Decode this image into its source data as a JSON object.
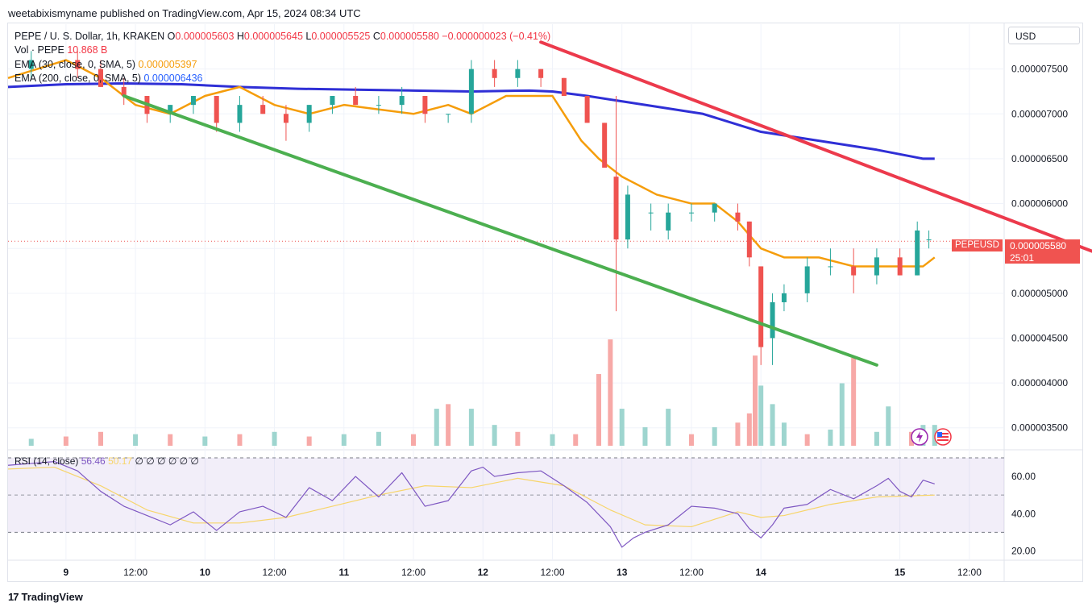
{
  "publisher_line": "weetabixismyname published on TradingView.com, Apr 15, 2024 08:34 UTC",
  "legend": {
    "symbol": "PEPE / U. S. Dollar, 1h, KRAKEN",
    "ohlc": {
      "o_label": "O",
      "o": "0.000005603",
      "h_label": "H",
      "h": "0.000005645",
      "l_label": "L",
      "l": "0.000005525",
      "c_label": "C",
      "c": "0.000005580",
      "change": "−0.000000023 (−0.41%)"
    },
    "vol_label": "Vol · PEPE",
    "vol_value": "10.868 B",
    "ema30_label": "EMA (30, close, 0, SMA, 5)",
    "ema30_value": "0.000005397",
    "ema200_label": "EMA (200, close, 0, SMA, 5)",
    "ema200_value": "0.000006436"
  },
  "currency": "USD",
  "price_tag": {
    "symbol": "PEPEUSD",
    "price": "0.000005580",
    "countdown": "25:01"
  },
  "rsi_legend": {
    "label": "RSI (14, close)",
    "rsi": "56.46",
    "ma": "50.17",
    "extras": "∅ ∅ ∅ ∅ ∅ ∅"
  },
  "footer": {
    "brand": "TradingView",
    "logo": "17"
  },
  "colors": {
    "up": "#26a69a",
    "down": "#ef5350",
    "ema30": "#f59d0b",
    "ema200": "#2f2fd6",
    "trend_red": "#ec3a4c",
    "trend_green": "#4caf50",
    "rsi": "#7e57c2",
    "rsi_ma": "#f7d56a"
  },
  "chart_data": [
    {
      "type": "line",
      "title": "PEPE / U. S. Dollar, 1h, KRAKEN",
      "ylim": [
        3.3e-06,
        8e-06
      ],
      "y_ticks": [
        "0.000007500",
        "0.000007000",
        "0.000006500",
        "0.000006000",
        "0.000005500",
        "0.000005000",
        "0.000004500",
        "0.000004000",
        "0.000003500"
      ],
      "y_tick_values": [
        7.5e-06,
        7e-06,
        6.5e-06,
        6e-06,
        5.5e-06,
        5e-06,
        4.5e-06,
        4e-06,
        3.5e-06
      ],
      "x_ticks": [
        "9",
        "12:00",
        "10",
        "12:00",
        "11",
        "12:00",
        "12",
        "12:00",
        "13",
        "12:00",
        "14",
        "15",
        "12:00"
      ],
      "x_tick_hours": [
        0,
        12,
        24,
        36,
        48,
        60,
        72,
        84,
        96,
        108,
        120,
        144,
        156
      ],
      "x_hour_range": [
        -10,
        162
      ],
      "series": [
        {
          "name": "EMA (30, close, 0, SMA, 5)",
          "x": [
            -10,
            0,
            6,
            12,
            18,
            24,
            30,
            36,
            42,
            48,
            54,
            60,
            66,
            70,
            76,
            82,
            84,
            86,
            89,
            92,
            96,
            102,
            108,
            112,
            116,
            120,
            124,
            130,
            136,
            142,
            148,
            150
          ],
          "values": [
            7.4e-06,
            7.6e-06,
            7.4e-06,
            7.1e-06,
            7e-06,
            7.2e-06,
            7.3e-06,
            7.1e-06,
            7e-06,
            7.1e-06,
            7.05e-06,
            7e-06,
            7.1e-06,
            7e-06,
            7.2e-06,
            7.2e-06,
            7.2e-06,
            7e-06,
            6.7e-06,
            6.5e-06,
            6.3e-06,
            6.1e-06,
            6e-06,
            6e-06,
            5.8e-06,
            5.5e-06,
            5.4e-06,
            5.4e-06,
            5.3e-06,
            5.3e-06,
            5.3e-06,
            5.4e-06
          ]
        },
        {
          "name": "EMA (200, close, 0, SMA, 5)",
          "x": [
            -10,
            0,
            10,
            20,
            30,
            40,
            50,
            60,
            70,
            80,
            84,
            90,
            100,
            110,
            120,
            130,
            140,
            148,
            150
          ],
          "values": [
            7.3e-06,
            7.33e-06,
            7.34e-06,
            7.33e-06,
            7.3e-06,
            7.28e-06,
            7.27e-06,
            7.26e-06,
            7.25e-06,
            7.26e-06,
            7.25e-06,
            7.2e-06,
            7.1e-06,
            7e-06,
            6.8e-06,
            6.7e-06,
            6.6e-06,
            6.5e-06,
            6.5e-06
          ]
        }
      ],
      "candles": [
        {
          "x": -6,
          "o": 7.5e-06,
          "h": 7.7e-06,
          "l": 7.4e-06,
          "c": 7.6e-06
        },
        {
          "x": 2,
          "o": 7.6e-06,
          "h": 7.7e-06,
          "l": 7.4e-06,
          "c": 7.5e-06
        },
        {
          "x": 6,
          "o": 7.5e-06,
          "h": 7.6e-06,
          "l": 7.3e-06,
          "c": 7.3e-06
        },
        {
          "x": 10,
          "o": 7.3e-06,
          "h": 7.4e-06,
          "l": 7.1e-06,
          "c": 7.2e-06
        },
        {
          "x": 14,
          "o": 7.2e-06,
          "h": 7.2e-06,
          "l": 6.9e-06,
          "c": 7e-06
        },
        {
          "x": 18,
          "o": 7e-06,
          "h": 7.1e-06,
          "l": 6.9e-06,
          "c": 7.1e-06
        },
        {
          "x": 22,
          "o": 7.1e-06,
          "h": 7.2e-06,
          "l": 7e-06,
          "c": 7.2e-06
        },
        {
          "x": 26,
          "o": 7.2e-06,
          "h": 7.2e-06,
          "l": 6.8e-06,
          "c": 6.9e-06
        },
        {
          "x": 30,
          "o": 6.9e-06,
          "h": 7.2e-06,
          "l": 6.8e-06,
          "c": 7.1e-06
        },
        {
          "x": 34,
          "o": 7.1e-06,
          "h": 7.2e-06,
          "l": 7e-06,
          "c": 7e-06
        },
        {
          "x": 38,
          "o": 7e-06,
          "h": 7.1e-06,
          "l": 6.7e-06,
          "c": 6.9e-06
        },
        {
          "x": 42,
          "o": 6.9e-06,
          "h": 7.1e-06,
          "l": 6.8e-06,
          "c": 7.1e-06
        },
        {
          "x": 46,
          "o": 7.1e-06,
          "h": 7.2e-06,
          "l": 7e-06,
          "c": 7.2e-06
        },
        {
          "x": 50,
          "o": 7.2e-06,
          "h": 7.3e-06,
          "l": 7.1e-06,
          "c": 7.1e-06
        },
        {
          "x": 54,
          "o": 7.1e-06,
          "h": 7.2e-06,
          "l": 7e-06,
          "c": 7.1e-06
        },
        {
          "x": 58,
          "o": 7.1e-06,
          "h": 7.3e-06,
          "l": 7e-06,
          "c": 7.2e-06
        },
        {
          "x": 62,
          "o": 7.2e-06,
          "h": 7.2e-06,
          "l": 6.9e-06,
          "c": 7e-06
        },
        {
          "x": 66,
          "o": 7e-06,
          "h": 7e-06,
          "l": 6.9e-06,
          "c": 7e-06
        },
        {
          "x": 70,
          "o": 7e-06,
          "h": 7.6e-06,
          "l": 6.9e-06,
          "c": 7.5e-06
        },
        {
          "x": 74,
          "o": 7.5e-06,
          "h": 7.6e-06,
          "l": 7.3e-06,
          "c": 7.4e-06
        },
        {
          "x": 78,
          "o": 7.4e-06,
          "h": 7.6e-06,
          "l": 7.3e-06,
          "c": 7.5e-06
        },
        {
          "x": 82,
          "o": 7.5e-06,
          "h": 7.5e-06,
          "l": 7.3e-06,
          "c": 7.4e-06
        },
        {
          "x": 86,
          "o": 7.4e-06,
          "h": 7.4e-06,
          "l": 7.2e-06,
          "c": 7.2e-06
        },
        {
          "x": 90,
          "o": 7.2e-06,
          "h": 7.2e-06,
          "l": 6.9e-06,
          "c": 6.9e-06
        },
        {
          "x": 93,
          "o": 6.9e-06,
          "h": 6.9e-06,
          "l": 6.4e-06,
          "c": 6.4e-06
        },
        {
          "x": 95,
          "o": 6.3e-06,
          "h": 7.2e-06,
          "l": 4.8e-06,
          "c": 5.6e-06
        },
        {
          "x": 97,
          "o": 5.6e-06,
          "h": 6.2e-06,
          "l": 5.5e-06,
          "c": 6.1e-06
        },
        {
          "x": 101,
          "o": 5.9e-06,
          "h": 6e-06,
          "l": 5.7e-06,
          "c": 5.9e-06
        },
        {
          "x": 104,
          "o": 5.7e-06,
          "h": 6e-06,
          "l": 5.6e-06,
          "c": 5.9e-06
        },
        {
          "x": 108,
          "o": 5.9e-06,
          "h": 6e-06,
          "l": 5.8e-06,
          "c": 5.9e-06
        },
        {
          "x": 112,
          "o": 5.9e-06,
          "h": 6e-06,
          "l": 5.8e-06,
          "c": 6e-06
        },
        {
          "x": 116,
          "o": 5.9e-06,
          "h": 6e-06,
          "l": 5.7e-06,
          "c": 5.8e-06
        },
        {
          "x": 118,
          "o": 5.8e-06,
          "h": 5.8e-06,
          "l": 5.3e-06,
          "c": 5.4e-06
        },
        {
          "x": 120,
          "o": 5.3e-06,
          "h": 5.3e-06,
          "l": 4.2e-06,
          "c": 4.4e-06
        },
        {
          "x": 122,
          "o": 4.5e-06,
          "h": 5e-06,
          "l": 4.2e-06,
          "c": 4.9e-06
        },
        {
          "x": 124,
          "o": 4.9e-06,
          "h": 5.1e-06,
          "l": 4.8e-06,
          "c": 5e-06
        },
        {
          "x": 128,
          "o": 5e-06,
          "h": 5.4e-06,
          "l": 4.9e-06,
          "c": 5.3e-06
        },
        {
          "x": 132,
          "o": 5.3e-06,
          "h": 5.5e-06,
          "l": 5.2e-06,
          "c": 5.3e-06
        },
        {
          "x": 136,
          "o": 5.3e-06,
          "h": 5.5e-06,
          "l": 5e-06,
          "c": 5.2e-06
        },
        {
          "x": 140,
          "o": 5.2e-06,
          "h": 5.5e-06,
          "l": 5.1e-06,
          "c": 5.4e-06
        },
        {
          "x": 144,
          "o": 5.4e-06,
          "h": 5.5e-06,
          "l": 5.2e-06,
          "c": 5.2e-06
        },
        {
          "x": 147,
          "o": 5.2e-06,
          "h": 5.8e-06,
          "l": 5.2e-06,
          "c": 5.7e-06
        },
        {
          "x": 149,
          "o": 5.6e-06,
          "h": 5.7e-06,
          "l": 5.5e-06,
          "c": 5.6e-06
        }
      ],
      "volume": [
        {
          "x": -6,
          "v": 0.3,
          "up": true
        },
        {
          "x": 0,
          "v": 0.4,
          "up": false
        },
        {
          "x": 6,
          "v": 0.6,
          "up": false
        },
        {
          "x": 12,
          "v": 0.5,
          "up": true
        },
        {
          "x": 18,
          "v": 0.5,
          "up": false
        },
        {
          "x": 24,
          "v": 0.4,
          "up": true
        },
        {
          "x": 30,
          "v": 0.5,
          "up": false
        },
        {
          "x": 36,
          "v": 0.6,
          "up": true
        },
        {
          "x": 42,
          "v": 0.4,
          "up": false
        },
        {
          "x": 48,
          "v": 0.5,
          "up": true
        },
        {
          "x": 54,
          "v": 0.6,
          "up": true
        },
        {
          "x": 60,
          "v": 0.5,
          "up": false
        },
        {
          "x": 64,
          "v": 1.6,
          "up": true
        },
        {
          "x": 66,
          "v": 1.8,
          "up": false
        },
        {
          "x": 70,
          "v": 1.6,
          "up": true
        },
        {
          "x": 74,
          "v": 0.9,
          "up": true
        },
        {
          "x": 78,
          "v": 0.6,
          "up": false
        },
        {
          "x": 84,
          "v": 0.5,
          "up": true
        },
        {
          "x": 88,
          "v": 0.5,
          "up": false
        },
        {
          "x": 92,
          "v": 3.1,
          "up": false
        },
        {
          "x": 94,
          "v": 4.6,
          "up": false
        },
        {
          "x": 96,
          "v": 1.6,
          "up": true
        },
        {
          "x": 100,
          "v": 0.8,
          "up": true
        },
        {
          "x": 104,
          "v": 1.6,
          "up": true
        },
        {
          "x": 108,
          "v": 0.5,
          "up": false
        },
        {
          "x": 112,
          "v": 0.8,
          "up": true
        },
        {
          "x": 116,
          "v": 1.0,
          "up": false
        },
        {
          "x": 118,
          "v": 1.4,
          "up": false
        },
        {
          "x": 119,
          "v": 3.9,
          "up": false
        },
        {
          "x": 120,
          "v": 2.6,
          "up": true
        },
        {
          "x": 122,
          "v": 1.8,
          "up": true
        },
        {
          "x": 124,
          "v": 1.0,
          "up": true
        },
        {
          "x": 128,
          "v": 0.5,
          "up": false
        },
        {
          "x": 132,
          "v": 0.7,
          "up": true
        },
        {
          "x": 134,
          "v": 2.7,
          "up": true
        },
        {
          "x": 136,
          "v": 3.8,
          "up": false
        },
        {
          "x": 140,
          "v": 0.6,
          "up": true
        },
        {
          "x": 142,
          "v": 1.7,
          "up": true
        },
        {
          "x": 146,
          "v": 0.6,
          "up": false
        },
        {
          "x": 148,
          "v": 0.9,
          "up": true
        },
        {
          "x": 150,
          "v": 0.9,
          "up": true
        }
      ],
      "trendlines": [
        {
          "color": "red",
          "from": [
            82,
            7.8e-06
          ],
          "to": [
            180,
            5.4e-06
          ]
        },
        {
          "color": "green",
          "from": [
            10,
            7.2e-06
          ],
          "to": [
            140,
            4.2e-06
          ]
        }
      ],
      "last_price": 5.58e-06
    },
    {
      "type": "line",
      "title": "RSI (14, close)",
      "ylim": [
        15,
        70
      ],
      "y_ticks": [
        "60.00",
        "40.00",
        "20.00"
      ],
      "y_tick_values": [
        60,
        40,
        20
      ],
      "bands": [
        70,
        50,
        30
      ],
      "series": [
        {
          "name": "RSI (14, close)",
          "x": [
            -10,
            -6,
            -2,
            2,
            6,
            10,
            14,
            18,
            22,
            26,
            30,
            34,
            38,
            42,
            46,
            50,
            54,
            58,
            62,
            66,
            70,
            72,
            74,
            78,
            82,
            86,
            90,
            94,
            96,
            98,
            100,
            104,
            108,
            112,
            116,
            118,
            120,
            122,
            124,
            128,
            132,
            136,
            140,
            142,
            144,
            146,
            148,
            150
          ],
          "values": [
            66,
            67,
            68,
            63,
            52,
            44,
            39,
            34,
            41,
            31,
            41,
            44,
            38,
            54,
            47,
            60,
            49,
            62,
            44,
            47,
            63,
            65,
            60,
            62,
            63,
            55,
            46,
            33,
            22,
            27,
            30,
            34,
            44,
            43,
            40,
            32,
            27,
            34,
            43,
            45,
            53,
            48,
            55,
            59,
            52,
            49,
            58,
            56
          ]
        },
        {
          "name": "MA",
          "x": [
            -10,
            -2,
            6,
            14,
            22,
            30,
            38,
            46,
            54,
            62,
            70,
            78,
            86,
            94,
            100,
            108,
            116,
            120,
            124,
            132,
            140,
            150
          ],
          "values": [
            64,
            65,
            55,
            42,
            35,
            35,
            38,
            44,
            50,
            55,
            54,
            59,
            55,
            42,
            34,
            33,
            41,
            38,
            39,
            45,
            49,
            50
          ]
        }
      ]
    }
  ]
}
